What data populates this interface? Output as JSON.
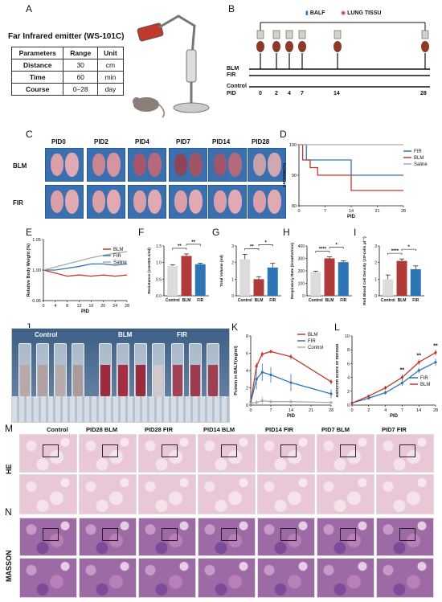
{
  "panels": {
    "A": "A",
    "B": "B",
    "C": "C",
    "D": "D",
    "E": "E",
    "F": "F",
    "G": "G",
    "H": "H",
    "I": "I",
    "J": "J",
    "K": "K",
    "L": "L",
    "M": "M",
    "N": "N"
  },
  "panel_a": {
    "title": "Far Infrared emitter (WS-101C)",
    "headers": [
      "Parameters",
      "Range",
      "Unit"
    ],
    "rows": [
      [
        "Distance",
        "30",
        "cm"
      ],
      [
        "Time",
        "60",
        "min"
      ],
      [
        "Course",
        "0–28",
        "day"
      ]
    ]
  },
  "panel_b": {
    "balf": "BALF",
    "lung": "LUNG TISSU",
    "rows": [
      "BLM",
      "FIR",
      "Control"
    ],
    "pid_label": "PID",
    "pids": [
      "0",
      "2",
      "4",
      "7",
      "14",
      "28"
    ]
  },
  "panel_c": {
    "cols": [
      "PID0",
      "PID2",
      "PID4",
      "PID7",
      "PID14",
      "PID28"
    ],
    "rows": [
      "BLM",
      "FIR"
    ]
  },
  "chart_data": [
    {
      "panel": "D",
      "type": "line",
      "ylabel": "Survival(%)",
      "xlabel": "PID",
      "yticks": [
        "80",
        "90",
        "100"
      ],
      "xticks": [
        "0",
        "7",
        "14",
        "21",
        "28"
      ],
      "ylim": [
        80,
        100
      ],
      "xlim": [
        0,
        28
      ],
      "series": [
        {
          "name": "FIR",
          "color": "#2e75b6",
          "x": [
            0,
            2,
            2,
            14,
            14,
            28
          ],
          "y": [
            100,
            100,
            95,
            95,
            90,
            90
          ]
        },
        {
          "name": "BLM",
          "color": "#c0392b",
          "x": [
            0,
            1,
            1,
            3,
            3,
            5,
            5,
            14,
            14,
            28
          ],
          "y": [
            100,
            100,
            95,
            95,
            92.5,
            92.5,
            90,
            90,
            85,
            85
          ]
        },
        {
          "name": "Saline",
          "color": "#aaaaaa",
          "x": [
            0,
            28
          ],
          "y": [
            100,
            100
          ]
        }
      ]
    },
    {
      "panel": "E",
      "type": "line",
      "ylabel": "Relative Body Weight (%)",
      "xlabel": "PID",
      "yticks": [
        "0.95",
        "1.00",
        "1.05"
      ],
      "xticks": [
        "0",
        "4",
        "8",
        "12",
        "16",
        "20",
        "24",
        "28"
      ],
      "ylim": [
        0.95,
        1.05
      ],
      "xlim": [
        0,
        28
      ],
      "series": [
        {
          "name": "BLM",
          "color": "#c0392b",
          "x": [
            0,
            4,
            8,
            12,
            16,
            20,
            24,
            28
          ],
          "y": [
            1.0,
            0.995,
            0.99,
            0.992,
            0.99,
            0.992,
            0.99,
            0.992
          ]
        },
        {
          "name": "FIR",
          "color": "#2e75b6",
          "x": [
            0,
            4,
            8,
            12,
            16,
            20,
            24,
            28
          ],
          "y": [
            1.0,
            1.0,
            1.003,
            1.006,
            1.01,
            1.01,
            1.008,
            1.01
          ]
        },
        {
          "name": "Saline",
          "color": "#aaaaaa",
          "x": [
            0,
            4,
            8,
            12,
            16,
            20,
            24,
            28
          ],
          "y": [
            1.0,
            1.005,
            1.01,
            1.015,
            1.02,
            1.024,
            1.028,
            1.03
          ]
        }
      ]
    },
    {
      "panel": "F",
      "type": "bar",
      "ylabel": "Resistance (cmH2O.s/ml)",
      "categories": [
        "Control",
        "BLM",
        "FIR"
      ],
      "values": [
        0.9,
        1.2,
        0.95
      ],
      "errors": [
        0.03,
        0.06,
        0.03
      ],
      "yticks": [
        "0.0",
        "0.5",
        "1.0",
        "1.5"
      ],
      "ylim": [
        0,
        1.5
      ],
      "colors": [
        "#dcdcdc",
        "#b03a3a",
        "#2e75b6"
      ],
      "sig": [
        "**",
        "**"
      ]
    },
    {
      "panel": "G",
      "type": "bar",
      "ylabel": "Total Volume (ml)",
      "categories": [
        "Control",
        "BLM",
        "FIR"
      ],
      "values": [
        2.2,
        1.0,
        1.7
      ],
      "errors": [
        0.3,
        0.15,
        0.25
      ],
      "yticks": [
        "0",
        "1",
        "2",
        "3"
      ],
      "ylim": [
        0,
        3
      ],
      "colors": [
        "#dcdcdc",
        "#b03a3a",
        "#2e75b6"
      ],
      "sig": [
        "**",
        "*"
      ]
    },
    {
      "panel": "H",
      "type": "bar",
      "ylabel": "Respiratory Rate (breaths/min)",
      "categories": [
        "Control",
        "BLM",
        "FIR"
      ],
      "values": [
        190,
        300,
        270
      ],
      "errors": [
        8,
        12,
        10
      ],
      "yticks": [
        "0",
        "100",
        "200",
        "300",
        "400"
      ],
      "ylim": [
        0,
        400
      ],
      "colors": [
        "#dcdcdc",
        "#b03a3a",
        "#2e75b6"
      ],
      "sig": [
        "****",
        "*"
      ]
    },
    {
      "panel": "I",
      "type": "bar",
      "ylabel": "Red Blood Cell Density (10⁴cells μl⁻¹)",
      "categories": [
        "Control",
        "BLM",
        "FIR"
      ],
      "values": [
        1.0,
        2.1,
        1.6
      ],
      "errors": [
        0.25,
        0.12,
        0.2
      ],
      "yticks": [
        "0",
        "1",
        "2",
        "3"
      ],
      "ylim": [
        0,
        3
      ],
      "colors": [
        "#dcdcdc",
        "#b03a3a",
        "#2e75b6"
      ],
      "sig": [
        "****",
        "*"
      ]
    },
    {
      "panel": "K",
      "type": "line",
      "ylabel": "Protein in BALF(mg/ml)",
      "xlabel": "PID",
      "yticks": [
        "0",
        "2",
        "4",
        "6",
        "8"
      ],
      "xticks": [
        "0",
        "7",
        "14",
        "21",
        "28"
      ],
      "ylim": [
        0,
        8
      ],
      "xlim": [
        0,
        28
      ],
      "series": [
        {
          "name": "BLM",
          "color": "#c0392b",
          "x": [
            0,
            2,
            4,
            7,
            14,
            28
          ],
          "y": [
            0.3,
            4.5,
            5.9,
            6.2,
            5.6,
            2.7
          ],
          "err": [
            0.1,
            0.4,
            0.3,
            0.2,
            0.3,
            0.3
          ]
        },
        {
          "name": "FIR",
          "color": "#2e75b6",
          "x": [
            0,
            2,
            4,
            7,
            14,
            28
          ],
          "y": [
            0.3,
            3.0,
            3.8,
            3.5,
            2.6,
            1.3
          ],
          "err": [
            0.1,
            1.2,
            1.0,
            0.9,
            1.0,
            0.5
          ]
        },
        {
          "name": "Control",
          "color": "#aaaaaa",
          "x": [
            0,
            2,
            4,
            7,
            14,
            28
          ],
          "y": [
            0.2,
            0.3,
            0.5,
            0.4,
            0.4,
            0.3
          ],
          "err": [
            0.05,
            0.3,
            0.5,
            0.2,
            0.2,
            0.1
          ]
        }
      ]
    },
    {
      "panel": "L",
      "type": "line",
      "ylabel": "Ashcroft score of fibrosis",
      "xlabel": "PID",
      "yticks": [
        "0",
        "2",
        "4",
        "6",
        "8",
        "10"
      ],
      "xticks": [
        "0",
        "2",
        "4",
        "7",
        "14",
        "28"
      ],
      "ylim": [
        0,
        10
      ],
      "series": [
        {
          "name": "FIR",
          "color": "#2e75b6",
          "x": [
            0,
            2,
            4,
            7,
            14,
            28
          ],
          "y": [
            0.3,
            1.0,
            1.8,
            3.2,
            5.0,
            6.2
          ],
          "err": [
            0.1,
            0.2,
            0.3,
            0.4,
            0.4,
            0.5
          ]
        },
        {
          "name": "BLM",
          "color": "#c0392b",
          "x": [
            0,
            2,
            4,
            7,
            14,
            28
          ],
          "y": [
            0.3,
            1.3,
            2.5,
            4.0,
            6.2,
            7.6
          ],
          "err": [
            0.1,
            0.2,
            0.3,
            0.4,
            0.4,
            0.4
          ]
        }
      ],
      "sig": [
        "**",
        "**",
        "**"
      ]
    }
  ],
  "panel_j": {
    "labels": [
      "Control",
      "BLM",
      "FIR"
    ]
  },
  "panel_m": {
    "cols": [
      "Control",
      "PID28 BLM",
      "PID28 FIR",
      "PID14 BLM",
      "PID14 FIR",
      "PID7 BLM",
      "PID7 FIR"
    ],
    "row_label": "HE"
  },
  "panel_n": {
    "row_label": "MASSON"
  }
}
